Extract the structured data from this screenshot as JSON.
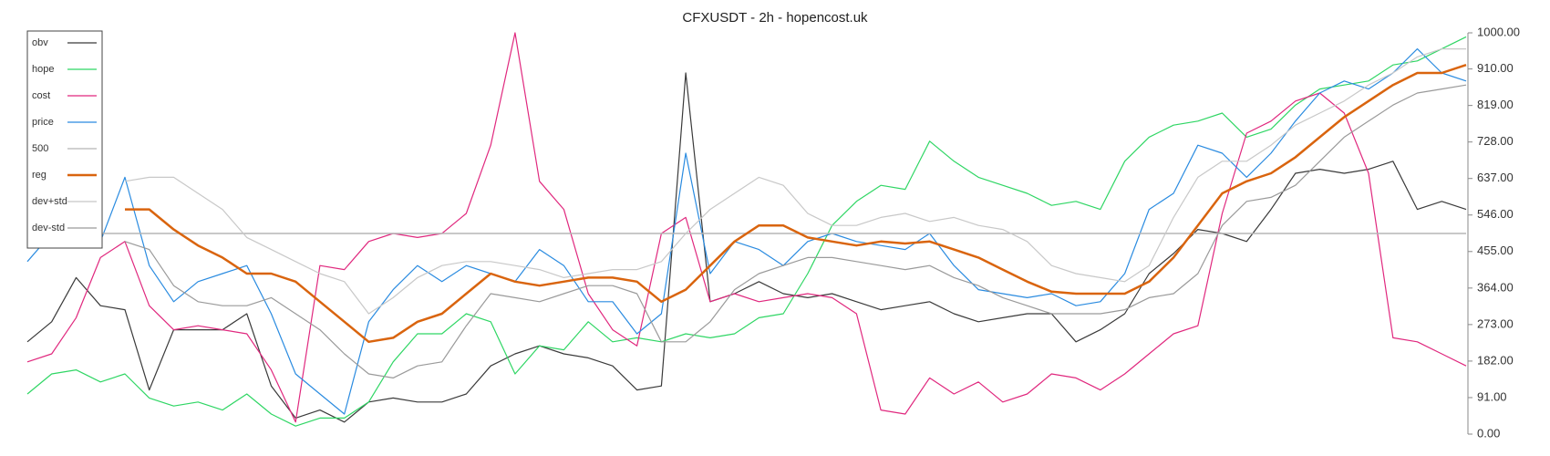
{
  "chart_data": {
    "type": "line",
    "title": "CFXUSDT - 2h - hopencost.uk",
    "ylim": [
      0,
      1000
    ],
    "yticks": [
      {
        "value": 0,
        "label": "0.00"
      },
      {
        "value": 91,
        "label": "91.00"
      },
      {
        "value": 182,
        "label": "182.00"
      },
      {
        "value": 273,
        "label": "273.00"
      },
      {
        "value": 364,
        "label": "364.00"
      },
      {
        "value": 455,
        "label": "455.00"
      },
      {
        "value": 546,
        "label": "546.00"
      },
      {
        "value": 637,
        "label": "637.00"
      },
      {
        "value": 728,
        "label": "728.00"
      },
      {
        "value": 819,
        "label": "819.00"
      },
      {
        "value": 910,
        "label": "910.00"
      },
      {
        "value": 1000,
        "label": "1000.00"
      }
    ],
    "legend": "top-left",
    "series": [
      {
        "name": "obv",
        "color": "#3a3a3a",
        "values": [
          230,
          280,
          390,
          320,
          310,
          110,
          260,
          260,
          260,
          300,
          120,
          40,
          60,
          30,
          80,
          90,
          80,
          80,
          100,
          170,
          200,
          220,
          200,
          190,
          170,
          110,
          120,
          900,
          330,
          350,
          380,
          350,
          340,
          350,
          330,
          310,
          320,
          330,
          300,
          280,
          290,
          300,
          300,
          230,
          260,
          300,
          400,
          450,
          510,
          500,
          480,
          560,
          650,
          660,
          650,
          660,
          680,
          560,
          580,
          560
        ]
      },
      {
        "name": "hope",
        "color": "#2fd664",
        "values": [
          100,
          150,
          160,
          130,
          150,
          90,
          70,
          80,
          60,
          100,
          50,
          20,
          40,
          40,
          80,
          180,
          250,
          250,
          300,
          280,
          150,
          220,
          210,
          280,
          230,
          240,
          230,
          250,
          240,
          250,
          290,
          300,
          400,
          520,
          580,
          620,
          610,
          730,
          680,
          640,
          620,
          600,
          570,
          580,
          560,
          680,
          740,
          770,
          780,
          800,
          740,
          760,
          820,
          860,
          870,
          880,
          920,
          930,
          960,
          990
        ]
      },
      {
        "name": "cost",
        "color": "#e0287e",
        "values": [
          180,
          200,
          290,
          440,
          480,
          320,
          260,
          270,
          260,
          250,
          160,
          30,
          420,
          410,
          480,
          500,
          490,
          500,
          550,
          720,
          1000,
          630,
          560,
          350,
          260,
          220,
          500,
          540,
          330,
          350,
          330,
          340,
          350,
          340,
          300,
          60,
          50,
          140,
          100,
          130,
          80,
          100,
          150,
          140,
          110,
          150,
          200,
          250,
          270,
          550,
          750,
          780,
          830,
          850,
          800,
          650,
          240,
          230,
          200,
          170
        ]
      },
      {
        "name": "price",
        "color": "#2a8be0",
        "values": [
          430,
          500,
          470,
          480,
          640,
          420,
          330,
          380,
          400,
          420,
          300,
          150,
          100,
          50,
          280,
          360,
          420,
          380,
          420,
          400,
          380,
          460,
          420,
          330,
          330,
          250,
          300,
          700,
          400,
          480,
          460,
          420,
          480,
          500,
          480,
          470,
          460,
          500,
          420,
          360,
          350,
          340,
          350,
          320,
          330,
          400,
          560,
          600,
          720,
          700,
          640,
          700,
          780,
          850,
          880,
          860,
          900,
          960,
          900,
          880
        ]
      },
      {
        "name": "500",
        "color": "#b5b5b5",
        "value": 500
      },
      {
        "name": "reg",
        "color": "#d9640e",
        "values": [
          null,
          null,
          null,
          null,
          560,
          560,
          510,
          470,
          440,
          400,
          400,
          380,
          330,
          280,
          230,
          240,
          280,
          300,
          350,
          400,
          380,
          370,
          380,
          390,
          390,
          380,
          330,
          360,
          420,
          480,
          520,
          520,
          490,
          480,
          470,
          480,
          475,
          480,
          460,
          440,
          410,
          380,
          355,
          350,
          350,
          350,
          380,
          440,
          520,
          600,
          630,
          650,
          690,
          740,
          790,
          830,
          870,
          900,
          900,
          920
        ]
      },
      {
        "name": "dev+std",
        "color": "#c8c8c8",
        "values": [
          null,
          null,
          null,
          null,
          630,
          640,
          640,
          600,
          560,
          490,
          460,
          430,
          400,
          380,
          300,
          340,
          390,
          420,
          430,
          430,
          420,
          410,
          390,
          400,
          410,
          410,
          430,
          500,
          560,
          600,
          640,
          620,
          550,
          520,
          520,
          540,
          550,
          530,
          540,
          520,
          510,
          480,
          420,
          400,
          390,
          380,
          420,
          540,
          640,
          680,
          680,
          720,
          770,
          800,
          830,
          870,
          900,
          940,
          960,
          960
        ]
      },
      {
        "name": "dev-std",
        "color": "#9a9a9a",
        "values": [
          null,
          null,
          null,
          null,
          480,
          460,
          370,
          330,
          320,
          320,
          340,
          300,
          260,
          200,
          150,
          140,
          170,
          180,
          270,
          350,
          340,
          330,
          350,
          370,
          370,
          350,
          230,
          230,
          280,
          360,
          400,
          420,
          440,
          440,
          430,
          420,
          410,
          420,
          390,
          370,
          340,
          320,
          300,
          300,
          300,
          310,
          340,
          350,
          400,
          520,
          580,
          590,
          620,
          680,
          740,
          780,
          820,
          850,
          860,
          870
        ]
      }
    ]
  }
}
